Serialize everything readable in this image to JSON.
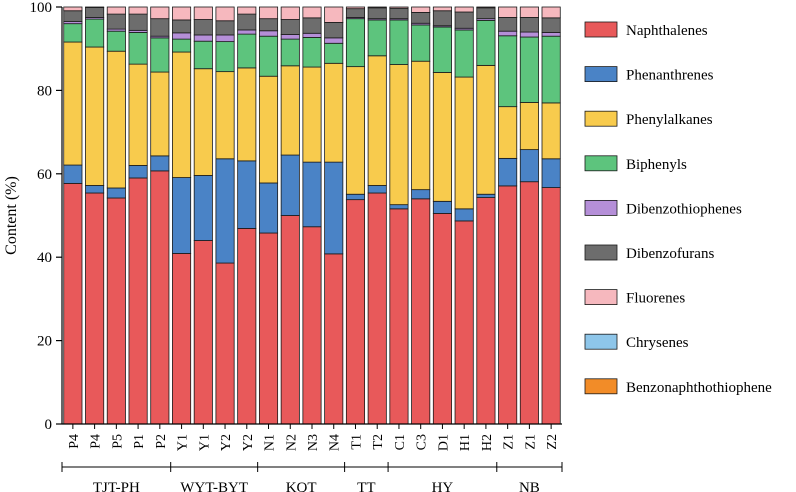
{
  "chart_data": {
    "type": "bar",
    "stacked": true,
    "title": "",
    "xlabel": "",
    "ylabel": "Content (%)",
    "ylim": [
      0,
      100
    ],
    "yticks": [
      0,
      20,
      40,
      60,
      80,
      100
    ],
    "legend_position": "right",
    "categories": [
      "P4",
      "P4",
      "P5",
      "P1",
      "P2",
      "Y1",
      "Y1",
      "Y2",
      "Y2",
      "N1",
      "N2",
      "N3",
      "N4",
      "T1",
      "T2",
      "C1",
      "C3",
      "D1",
      "H1",
      "H2",
      "Z1",
      "Z1",
      "Z2"
    ],
    "groups": [
      {
        "label": "TJT-PH",
        "start": 0,
        "end": 4
      },
      {
        "label": "WYT-BYT",
        "start": 5,
        "end": 8
      },
      {
        "label": "KQT",
        "start": 9,
        "end": 12
      },
      {
        "label": "TT",
        "start": 13,
        "end": 14
      },
      {
        "label": "HY",
        "start": 15,
        "end": 19
      },
      {
        "label": "NB",
        "start": 20,
        "end": 22
      }
    ],
    "series": [
      {
        "name": "Naphthalenes",
        "color": "#e8595a",
        "values": [
          57.7,
          55.4,
          54.2,
          59.0,
          60.7,
          40.9,
          44.0,
          38.6,
          46.9,
          45.8,
          50.0,
          47.3,
          40.8,
          53.8,
          55.4,
          51.6,
          54.0,
          50.5,
          48.7,
          54.3,
          57.1,
          58.1,
          56.7
        ]
      },
      {
        "name": "Phenanthrenes",
        "color": "#4a83c6",
        "values": [
          4.4,
          1.8,
          2.4,
          3.0,
          3.6,
          18.2,
          15.6,
          25.0,
          16.2,
          12.0,
          14.5,
          15.5,
          22.0,
          1.3,
          1.8,
          1.0,
          2.2,
          2.9,
          2.9,
          0.8,
          6.6,
          7.7,
          6.9
        ]
      },
      {
        "name": "Phenylalkanes",
        "color": "#f8cb4d",
        "values": [
          29.5,
          33.2,
          32.8,
          24.3,
          20.1,
          30.1,
          25.6,
          20.9,
          22.3,
          25.6,
          21.4,
          22.8,
          23.7,
          30.6,
          31.1,
          33.6,
          30.8,
          30.9,
          31.6,
          30.9,
          12.4,
          11.3,
          13.4
        ]
      },
      {
        "name": "Biphenyls",
        "color": "#5dc47d",
        "values": [
          4.4,
          6.7,
          4.8,
          7.6,
          8.2,
          3.1,
          6.6,
          7.2,
          8.1,
          9.6,
          6.4,
          7.1,
          4.8,
          11.5,
          8.6,
          10.7,
          8.7,
          10.9,
          11.3,
          10.8,
          17.0,
          15.7,
          16.0
        ]
      },
      {
        "name": "Dibenzothiophenes",
        "color": "#b58fd8",
        "values": [
          0.5,
          0.4,
          0.5,
          0.5,
          0.4,
          1.5,
          1.5,
          1.6,
          1.0,
          1.3,
          1.1,
          1.0,
          1.3,
          0.3,
          0.3,
          0.3,
          0.4,
          0.3,
          0.4,
          0.4,
          1.1,
          1.2,
          0.9
        ]
      },
      {
        "name": "Dibenzofurans",
        "color": "#6d6d6d",
        "values": [
          2.6,
          2.4,
          3.6,
          3.9,
          4.2,
          3.1,
          3.7,
          3.4,
          3.8,
          2.9,
          3.6,
          3.7,
          3.7,
          2.1,
          2.6,
          2.5,
          2.6,
          3.6,
          3.9,
          2.6,
          3.3,
          3.5,
          3.5
        ]
      },
      {
        "name": "Fluorenes",
        "color": "#f6b8be",
        "values": [
          0.9,
          0.1,
          1.7,
          1.7,
          2.8,
          3.1,
          3.0,
          3.3,
          1.7,
          2.8,
          3.0,
          2.6,
          3.7,
          0.4,
          0.2,
          0.3,
          1.3,
          0.9,
          1.2,
          0.2,
          2.5,
          2.5,
          2.6
        ]
      },
      {
        "name": "Chrysenes",
        "color": "#8ec6ea",
        "values": [
          0,
          0,
          0,
          0,
          0,
          0,
          0,
          0,
          0,
          0,
          0,
          0,
          0,
          0,
          0,
          0,
          0,
          0,
          0,
          0,
          0,
          0,
          0
        ]
      },
      {
        "name": "Benzonaphthothiophene",
        "color": "#f28c28",
        "values": [
          0,
          0,
          0,
          0,
          0,
          0,
          0,
          0,
          0,
          0,
          0,
          0,
          0,
          0,
          0,
          0,
          0,
          0,
          0,
          0,
          0,
          0,
          0
        ]
      }
    ]
  }
}
